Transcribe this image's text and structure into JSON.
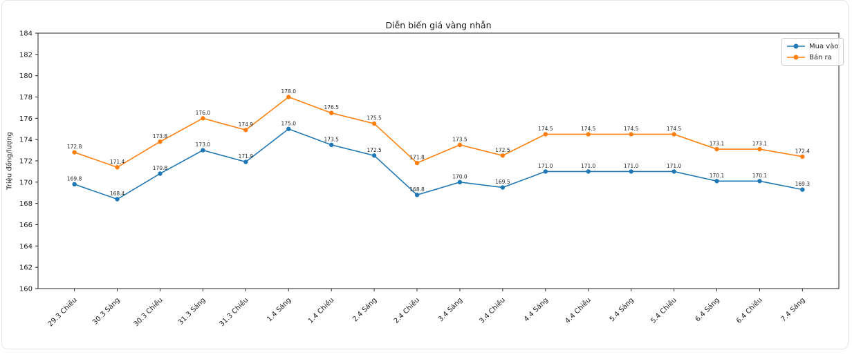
{
  "chart_data": {
    "type": "line",
    "title": "Diễn biến giá vàng nhẫn",
    "xlabel": "",
    "ylabel": "Triệu đồng/lượng",
    "categories": [
      "29.3 Chiều",
      "30.3 Sáng",
      "30.3 Chiều",
      "31.3 Sáng",
      "31.3 Chiều",
      "1.4 Sáng",
      "1.4 Chiều",
      "2.4 Sáng",
      "2.4 Chiều",
      "3.4 Sáng",
      "3.4 Chiều",
      "4.4 Sáng",
      "4.4 Chiều",
      "5.4 Sáng",
      "5.4 Chiều",
      "6.4 Sáng",
      "6.4 Chiều",
      "7.4 Sáng"
    ],
    "series": [
      {
        "name": "Mua vào",
        "color": "#1f77b4",
        "values": [
          169.8,
          168.4,
          170.8,
          173.0,
          171.9,
          175.0,
          173.5,
          172.5,
          168.8,
          170.0,
          169.5,
          171.0,
          171.0,
          171.0,
          171.0,
          170.1,
          170.1,
          169.3
        ]
      },
      {
        "name": "Bán ra",
        "color": "#ff7f0e",
        "values": [
          172.8,
          171.4,
          173.8,
          176.0,
          174.9,
          178.0,
          176.5,
          175.5,
          171.8,
          173.5,
          172.5,
          174.5,
          174.5,
          174.5,
          174.5,
          173.1,
          173.1,
          172.4
        ]
      }
    ],
    "ylim": [
      160,
      184
    ],
    "yticks": [
      160,
      162,
      164,
      166,
      168,
      170,
      172,
      174,
      176,
      178,
      180,
      182,
      184
    ],
    "grid": false,
    "legend_position": "upper right",
    "point_labels": true,
    "point_label_decimals": 1
  }
}
